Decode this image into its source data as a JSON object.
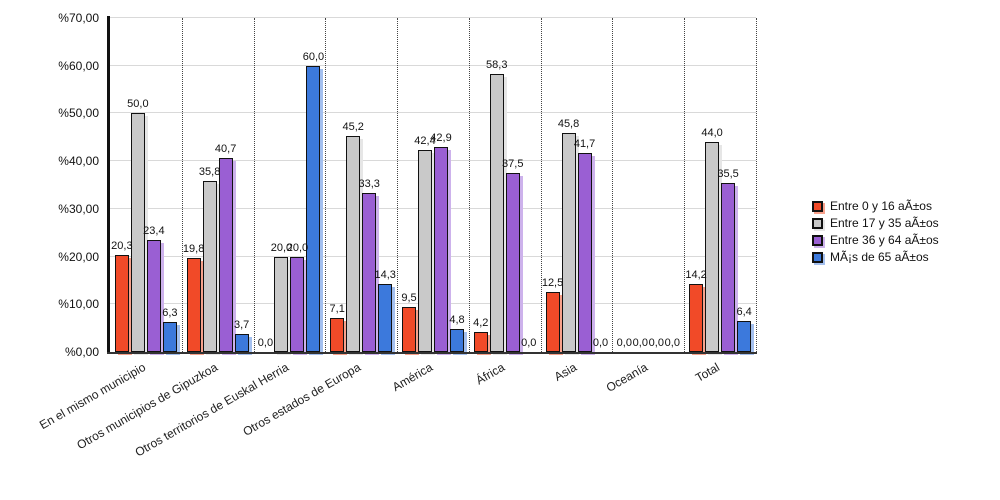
{
  "chart_data": {
    "type": "bar",
    "title": "",
    "xlabel": "",
    "ylabel": "",
    "legend_position": "right",
    "grid": {
      "horizontal": true,
      "vertical": "dotted"
    },
    "y_axis": {
      "min": 0,
      "max": 70,
      "step": 10,
      "tick_labels": [
        "%0,00",
        "%10,00",
        "%20,00",
        "%30,00",
        "%40,00",
        "%50,00",
        "%60,00",
        "%70,00"
      ]
    },
    "categories": [
      "En el mismo municipio",
      "Otros municipios de Gipuzkoa",
      "Otros territorios de Euskal Herria",
      "Otros estados de Europa",
      "América",
      "África",
      "Asia",
      "Oceanía",
      "Total"
    ],
    "series": [
      {
        "name": "Entre 0 y 16 aÃ±os",
        "color": "#F14A28",
        "shadow_color": "#F8A28C",
        "values": [
          20.3,
          19.8,
          0.0,
          7.1,
          9.5,
          4.2,
          12.5,
          0.0,
          14.2
        ],
        "labels": [
          "20,3",
          "19,8",
          "0,0",
          "7,1",
          "9,5",
          "4,2",
          "12,5",
          "0,0",
          "14,2"
        ]
      },
      {
        "name": "Entre 17 y 35 aÃ±os",
        "color": "#C9C9C9",
        "shadow_color": "#E6E6E6",
        "values": [
          50.0,
          35.8,
          20.0,
          45.2,
          42.4,
          58.3,
          45.8,
          0.0,
          44.0
        ],
        "labels": [
          "50,0",
          "35,8",
          "20,0",
          "45,2",
          "42,4",
          "58,3",
          "45,8",
          "0,0",
          "44,0"
        ]
      },
      {
        "name": "Entre 36 y 64 aÃ±os",
        "color": "#9A5FD3",
        "shadow_color": "#CDB2EC",
        "values": [
          23.4,
          40.7,
          20.0,
          33.3,
          42.9,
          37.5,
          41.7,
          0.0,
          35.5
        ],
        "labels": [
          "23,4",
          "40,7",
          "20,0",
          "33,3",
          "42,9",
          "37,5",
          "41,7",
          "0,0",
          "35,5"
        ]
      },
      {
        "name": "MÃ¡s de 65 aÃ±os",
        "color": "#3C79DC",
        "shadow_color": "#A4C0EF",
        "values": [
          6.3,
          3.7,
          60.0,
          14.3,
          4.8,
          0.0,
          0.0,
          0.0,
          6.4
        ],
        "labels": [
          "6,3",
          "3,7",
          "60,0",
          "14,3",
          "4,8",
          "0,0",
          "0,0",
          "0,0",
          "6,4"
        ]
      }
    ]
  }
}
